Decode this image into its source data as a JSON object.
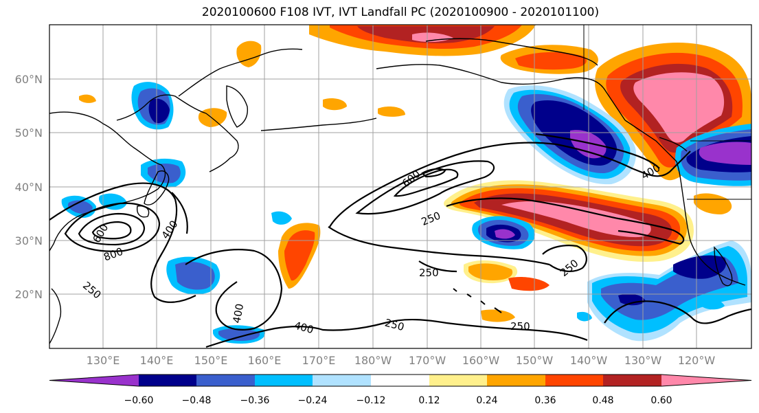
{
  "title": "2020100600 F108 IVT, IVT Landfall PC (2020100900 - 2020101100)",
  "lat_labels": [
    "60°N",
    "50°N",
    "40°N",
    "30°N",
    "20°N"
  ],
  "lon_labels": [
    "130°E",
    "140°E",
    "150°E",
    "160°E",
    "170°E",
    "180°W",
    "170°W",
    "160°W",
    "150°W",
    "140°W",
    "130°W",
    "120°W"
  ],
  "contour_labels": [
    "600",
    "250",
    "250",
    "250",
    "250",
    "250",
    "400",
    "400",
    "400",
    "400",
    "800",
    "600",
    "250"
  ],
  "colorbar": {
    "colors": [
      "#9932cc",
      "#00008b",
      "#3a5fcd",
      "#00bfff",
      "#b0e2ff",
      "#ffffff",
      "#fff08c",
      "#ffa500",
      "#ff4500",
      "#b22222",
      "#ff88aa"
    ],
    "tick_labels": [
      "−0.60",
      "−0.48",
      "−0.36",
      "−0.24",
      "−0.12",
      "0.12",
      "0.24",
      "0.36",
      "0.48",
      "0.60"
    ]
  }
}
